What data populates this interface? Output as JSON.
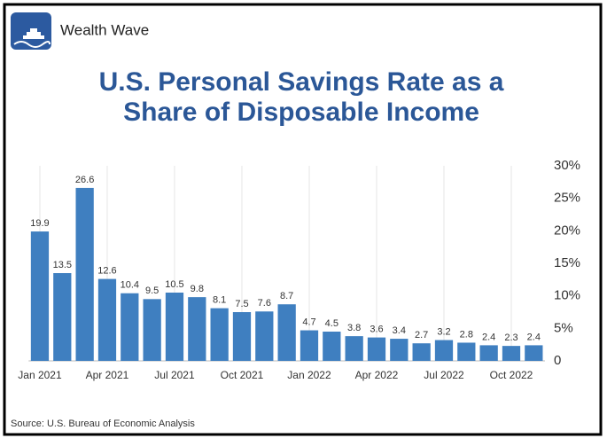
{
  "brand": "Wealth Wave",
  "source": "Source: U.S. Bureau of Economic Analysis",
  "chart_data": {
    "type": "bar",
    "title_lines": [
      "U.S. Personal Savings Rate as a",
      "Share of Disposable Income"
    ],
    "categories": [
      "Jan 2021",
      null,
      null,
      "Apr 2021",
      null,
      null,
      "Jul 2021",
      null,
      null,
      "Oct 2021",
      null,
      null,
      "Jan 2022",
      null,
      null,
      "Apr 2022",
      null,
      null,
      "Jul 2022",
      null,
      null,
      "Oct 2022",
      null
    ],
    "values": [
      19.9,
      13.5,
      26.6,
      12.6,
      10.4,
      9.5,
      10.5,
      9.8,
      8.1,
      7.5,
      7.6,
      8.7,
      4.7,
      4.5,
      3.8,
      3.6,
      3.4,
      2.7,
      3.2,
      2.8,
      2.4,
      2.3,
      2.4
    ],
    "color": "#3f7fc0",
    "ylim": [
      0,
      30
    ],
    "yticks": [
      0,
      {
        "value": 5,
        "label": "5%"
      },
      {
        "value": 10,
        "label": "10%"
      },
      {
        "value": 15,
        "label": "15%"
      },
      {
        "value": 20,
        "label": "20%"
      },
      {
        "value": 25,
        "label": "25%"
      },
      {
        "value": 30,
        "label": "30%"
      }
    ],
    "y_axis_side": "right",
    "grid": "x"
  }
}
